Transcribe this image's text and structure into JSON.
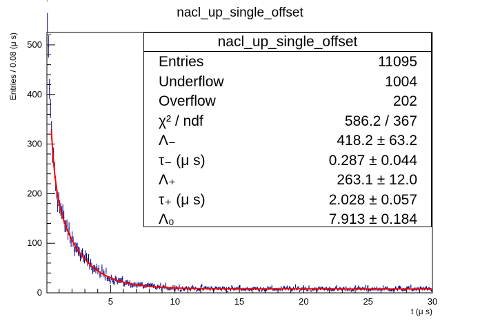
{
  "chart_data": {
    "type": "histogram",
    "title": "nacl_up_single_offset",
    "xlabel": "t (μ s)",
    "ylabel": "Entries / 0.08 (μ s)",
    "xlim": [
      0.05,
      30
    ],
    "ylim": [
      0,
      525
    ],
    "bin_width": 0.08,
    "x_ticks": [
      5,
      10,
      15,
      20,
      25,
      30
    ],
    "y_ticks": [
      100,
      200,
      300,
      400,
      500
    ],
    "grid": false,
    "legend": "top-right",
    "fit_function": {
      "formula": "A_minus*exp(-t/tau_minus) + A_plus*exp(-t/tau_plus) + A_0",
      "A_minus": 418.2,
      "tau_minus": 0.287,
      "A_plus": 263.1,
      "tau_plus": 2.028,
      "A_0": 7.913
    },
    "sample_points": [
      {
        "x": 0.05,
        "y": 458
      },
      {
        "x": 0.5,
        "y": 320
      },
      {
        "x": 1.0,
        "y": 262
      },
      {
        "x": 2.0,
        "y": 160
      },
      {
        "x": 3.0,
        "y": 95
      },
      {
        "x": 4.0,
        "y": 62
      },
      {
        "x": 5.0,
        "y": 35
      },
      {
        "x": 7.0,
        "y": 18
      },
      {
        "x": 10.0,
        "y": 11
      },
      {
        "x": 15.0,
        "y": 8
      },
      {
        "x": 20.0,
        "y": 8
      },
      {
        "x": 25.0,
        "y": 8
      },
      {
        "x": 30.0,
        "y": 8
      }
    ],
    "colors": {
      "data": "#00007a",
      "fit": "#ff0000",
      "axis": "#000000"
    }
  },
  "stats": {
    "title": "nacl_up_single_offset",
    "rows": [
      {
        "key": "Entries",
        "value": "11095"
      },
      {
        "key": "Underflow",
        "value": "1004"
      },
      {
        "key": "Overflow",
        "value": "202"
      },
      {
        "key": "χ² / ndf",
        "value": "586.2 / 367"
      },
      {
        "key": "Λ₋",
        "value": "418.2 ± 63.2"
      },
      {
        "key": "τ₋ (μ s)",
        "value": "0.287 ± 0.044"
      },
      {
        "key": "Λ₊",
        "value": "263.1 ± 12.0"
      },
      {
        "key": "τ₊ (μ s)",
        "value": "2.028 ± 0.057"
      },
      {
        "key": "Λ₀",
        "value": "7.913 ± 0.184"
      }
    ]
  }
}
